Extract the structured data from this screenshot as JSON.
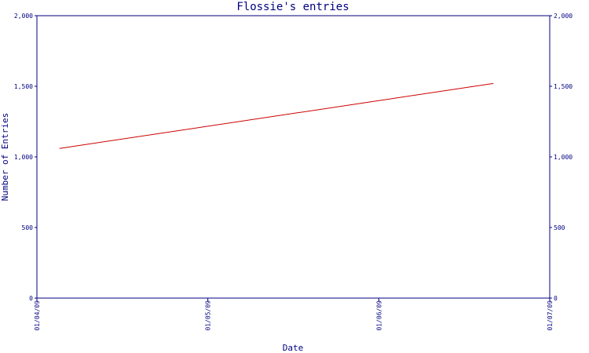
{
  "chart_data": {
    "type": "line",
    "title": "Flossie's entries",
    "xlabel": "Date",
    "ylabel": "Number of Entries",
    "x_tick_labels": [
      "01/04/09",
      "01/05/09",
      "01/06/09",
      "01/07/09"
    ],
    "y_tick_labels": [
      "0",
      "500",
      "1,000",
      "1,500",
      "2,000"
    ],
    "y_ticks": [
      0,
      500,
      1000,
      1500,
      2000
    ],
    "ylim": [
      0,
      2000
    ],
    "xlim": [
      "2009-04-01",
      "2009-07-01"
    ],
    "grid": false,
    "series": [
      {
        "color": "#cc0000",
        "points": [
          {
            "x": "2009-04-05",
            "y": 1060
          },
          {
            "x": "2009-06-21",
            "y": 1520
          }
        ]
      }
    ]
  }
}
